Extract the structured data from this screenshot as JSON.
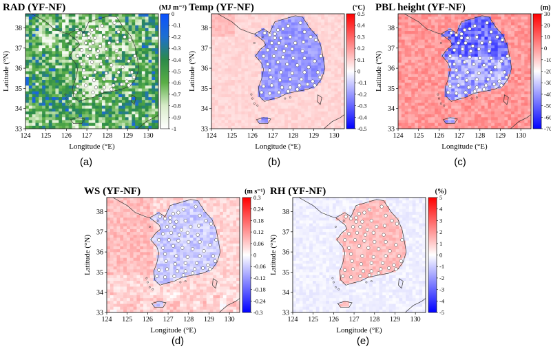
{
  "figure": {
    "panels": [
      {
        "id": "a",
        "caption": "(a)",
        "title": "RAD (YF-NF)",
        "unit": "(MJ m⁻²)",
        "xlabel": "Longitude (°E)",
        "ylabel": "Latitude (°N)"
      },
      {
        "id": "b",
        "caption": "(b)",
        "title": "Temp (YF-NF)",
        "unit": "(°C)",
        "xlabel": "Longitude (°E)",
        "ylabel": "Latitude (°N)"
      },
      {
        "id": "c",
        "caption": "(c)",
        "title": "PBL height (YF-NF)",
        "unit": "(m)",
        "xlabel": "Longitude (°E)",
        "ylabel": "Latitude (°N)"
      },
      {
        "id": "d",
        "caption": "(d)",
        "title": "WS (YF-NF)",
        "unit": "(m s⁻¹)",
        "xlabel": "Longitude (°E)",
        "ylabel": "Latitude (°N)"
      },
      {
        "id": "e",
        "caption": "(e)",
        "title": "RH (YF-NF)",
        "unit": "(%)",
        "xlabel": "Longitude (°E)",
        "ylabel": "Latitude (°N)"
      }
    ]
  },
  "chart_data": [
    {
      "panel": "a",
      "type": "heatmap",
      "title": "RAD (YF-NF)",
      "xlabel": "Longitude (°E)",
      "ylabel": "Latitude (°N)",
      "xlim": [
        124,
        130.5
      ],
      "ylim": [
        33,
        38.7
      ],
      "xticks": [
        "124",
        "125",
        "126",
        "127",
        "128",
        "129",
        "130"
      ],
      "yticks": [
        "33",
        "34",
        "35",
        "36",
        "37",
        "38"
      ],
      "colorbar": {
        "unit": "(MJ m⁻²)",
        "range": [
          -1,
          0
        ],
        "ticks": [
          "0",
          "-0.1",
          "-0.2",
          "-0.3",
          "-0.4",
          "-0.5",
          "-0.6",
          "-0.7",
          "-0.8",
          "-0.9",
          "-1"
        ],
        "colors": [
          "#ffffff",
          "#d8ecc9",
          "#5aae46",
          "#2b8a49",
          "#1e6fd0",
          "#0a50ff"
        ]
      }
    },
    {
      "panel": "b",
      "type": "heatmap",
      "title": "Temp (YF-NF)",
      "xlabel": "Longitude (°E)",
      "ylabel": "Latitude (°N)",
      "xlim": [
        124,
        130.5
      ],
      "ylim": [
        33,
        38.7
      ],
      "xticks": [
        "124",
        "125",
        "126",
        "127",
        "128",
        "129",
        "130"
      ],
      "yticks": [
        "33",
        "34",
        "35",
        "36",
        "37",
        "38"
      ],
      "colorbar": {
        "unit": "(°C)",
        "range": [
          -0.5,
          0.5
        ],
        "ticks": [
          "0.5",
          "0.4",
          "0.3",
          "0.2",
          "0.1",
          "0",
          "-0.1",
          "-0.2",
          "-0.3",
          "-0.4",
          "-0.5"
        ],
        "colors": [
          "#0000ff",
          "#ffffff",
          "#ff0000"
        ]
      }
    },
    {
      "panel": "c",
      "type": "heatmap",
      "title": "PBL height (YF-NF)",
      "xlabel": "Longitude (°E)",
      "ylabel": "Latitude (°N)",
      "xlim": [
        124,
        130.5
      ],
      "ylim": [
        33,
        38.7
      ],
      "xticks": [
        "124",
        "125",
        "126",
        "127",
        "128",
        "129",
        "130"
      ],
      "yticks": [
        "33",
        "34",
        "35",
        "36",
        "37",
        "38"
      ],
      "colorbar": {
        "unit": "(m)",
        "range": [
          -70,
          30
        ],
        "ticks": [
          "30",
          "20",
          "10",
          "0",
          "-10",
          "-20",
          "-30",
          "-40",
          "-50",
          "-60",
          "-70"
        ],
        "colors": [
          "#0000ff",
          "#ffffff",
          "#ff0000"
        ]
      }
    },
    {
      "panel": "d",
      "type": "heatmap",
      "title": "WS (YF-NF)",
      "xlabel": "Longitude (°E)",
      "ylabel": "Latitude (°N)",
      "xlim": [
        124,
        130.5
      ],
      "ylim": [
        33,
        38.7
      ],
      "xticks": [
        "124",
        "125",
        "126",
        "127",
        "128",
        "129",
        "130"
      ],
      "yticks": [
        "33",
        "34",
        "35",
        "36",
        "37",
        "38"
      ],
      "colorbar": {
        "unit": "(m s⁻¹)",
        "range": [
          -0.3,
          0.3
        ],
        "ticks": [
          "0.3",
          "0.24",
          "0.18",
          "0.12",
          "0.06",
          "0",
          "-0.06",
          "-0.12",
          "-0.18",
          "-0.24",
          "-0.3"
        ],
        "colors": [
          "#0000ff",
          "#ffffff",
          "#ff0000"
        ]
      }
    },
    {
      "panel": "e",
      "type": "heatmap",
      "title": "RH (YF-NF)",
      "xlabel": "Longitude (°E)",
      "ylabel": "Latitude (°N)",
      "xlim": [
        124,
        130.5
      ],
      "ylim": [
        33,
        38.7
      ],
      "xticks": [
        "124",
        "125",
        "126",
        "127",
        "128",
        "129",
        "130"
      ],
      "yticks": [
        "33",
        "34",
        "35",
        "36",
        "37",
        "38"
      ],
      "colorbar": {
        "unit": "(%)",
        "range": [
          -5,
          5
        ],
        "ticks": [
          "5",
          "4",
          "3",
          "2",
          "1",
          "0",
          "-1",
          "-2",
          "-3",
          "-4",
          "-5"
        ],
        "colors": [
          "#0000ff",
          "#ffffff",
          "#ff0000"
        ]
      }
    }
  ]
}
